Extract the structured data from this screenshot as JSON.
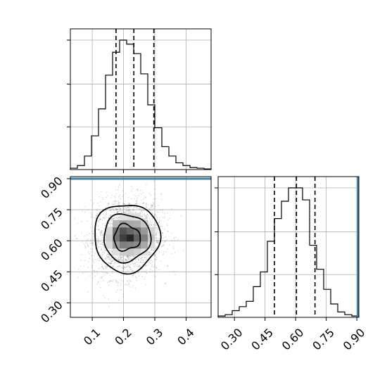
{
  "chart_data": {
    "type": "corner",
    "grid": true,
    "panels": [
      {
        "id": "hist_x",
        "type": "histogram",
        "xlim": [
          0.03,
          0.48
        ],
        "quantiles": [
          0.176,
          0.233,
          0.297
        ],
        "bin_edges": [
          0.03,
          0.0525,
          0.075,
          0.0975,
          0.12,
          0.1425,
          0.165,
          0.1875,
          0.21,
          0.2325,
          0.255,
          0.2775,
          0.3,
          0.3225,
          0.345,
          0.3675,
          0.39,
          0.4125,
          0.435,
          0.4575,
          0.48
        ],
        "counts": [
          0.01,
          0.03,
          0.1,
          0.25,
          0.45,
          0.7,
          0.87,
          0.96,
          0.93,
          0.86,
          0.71,
          0.48,
          0.31,
          0.17,
          0.1,
          0.05,
          0.03,
          0.015,
          0.01,
          0.005
        ]
      },
      {
        "id": "scatter_xy",
        "type": "2d-density",
        "xlim": [
          0.03,
          0.48
        ],
        "ylim": [
          0.23,
          0.91
        ],
        "x_ticks": [
          "0.1",
          "0.2",
          "0.3",
          "0.4"
        ],
        "y_ticks": [
          "0.30",
          "0.45",
          "0.60",
          "0.75",
          "0.90"
        ],
        "peak": {
          "x": 0.21,
          "y": 0.615
        },
        "truth_y": 0.9
      },
      {
        "id": "hist_y",
        "type": "histogram",
        "xlim": [
          0.22,
          0.91
        ],
        "quantiles": [
          0.496,
          0.604,
          0.695
        ],
        "truth_x": 0.905,
        "x_ticks": [
          "0.30",
          "0.45",
          "0.60",
          "0.75",
          "0.90"
        ],
        "bin_edges": [
          0.22,
          0.2545,
          0.289,
          0.3235,
          0.358,
          0.3925,
          0.427,
          0.4615,
          0.496,
          0.5305,
          0.565,
          0.5995,
          0.634,
          0.6685,
          0.703,
          0.7375,
          0.772,
          0.8065,
          0.841,
          0.8755,
          0.91
        ],
        "counts": [
          0.01,
          0.02,
          0.05,
          0.08,
          0.12,
          0.23,
          0.34,
          0.57,
          0.74,
          0.87,
          0.97,
          0.97,
          0.88,
          0.54,
          0.36,
          0.21,
          0.1,
          0.04,
          0.02,
          0.01
        ]
      }
    ]
  }
}
